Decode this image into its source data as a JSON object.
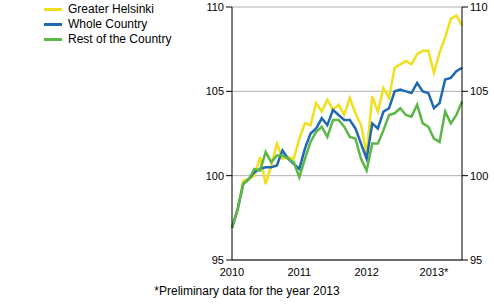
{
  "chart_data": {
    "type": "line",
    "annotations": [
      "*Preliminary data for the year 2013"
    ],
    "categories": [
      "2010",
      null,
      null,
      null,
      null,
      null,
      null,
      null,
      null,
      null,
      null,
      null,
      "2011",
      null,
      null,
      null,
      null,
      null,
      null,
      null,
      null,
      null,
      null,
      null,
      "2012",
      null,
      null,
      null,
      null,
      null,
      null,
      null,
      null,
      null,
      null,
      null,
      "2013*",
      null,
      null,
      null,
      null,
      null
    ],
    "series": [
      {
        "name": "Greater Helsinki",
        "color": "#f0df1c",
        "values": [
          96.9,
          98.0,
          99.7,
          99.8,
          100.0,
          101.1,
          99.5,
          100.6,
          101.9,
          101.0,
          101.1,
          101.0,
          102.2,
          103.1,
          103.0,
          104.3,
          103.8,
          104.5,
          103.9,
          104.2,
          103.6,
          104.6,
          103.7,
          103.0,
          101.3,
          104.7,
          103.8,
          105.2,
          104.6,
          106.4,
          106.6,
          106.8,
          106.6,
          107.2,
          107.4,
          107.4,
          106.1,
          107.3,
          108.2,
          109.3,
          109.5,
          108.9
        ]
      },
      {
        "name": "Whole Country",
        "color": "#1f69b3",
        "values": [
          96.9,
          98.0,
          99.5,
          99.8,
          100.2,
          100.4,
          100.5,
          100.5,
          100.6,
          101.5,
          101.0,
          100.7,
          100.4,
          101.6,
          102.5,
          102.8,
          103.4,
          103.0,
          103.9,
          103.6,
          103.3,
          103.3,
          102.8,
          101.9,
          101.0,
          103.1,
          102.8,
          103.8,
          104.0,
          105.0,
          105.1,
          105.0,
          104.9,
          105.5,
          105.0,
          104.9,
          104.0,
          104.3,
          105.7,
          105.8,
          106.2,
          106.4
        ]
      },
      {
        "name": "Rest of the Country",
        "color": "#5cb746",
        "values": [
          96.9,
          98.0,
          99.5,
          99.8,
          100.4,
          100.3,
          101.4,
          100.8,
          101.2,
          101.2,
          101.0,
          100.8,
          99.9,
          101.0,
          102.0,
          102.6,
          102.9,
          102.3,
          103.3,
          103.3,
          102.9,
          102.3,
          102.2,
          101.0,
          100.3,
          101.9,
          101.9,
          102.7,
          103.6,
          103.7,
          104.0,
          103.6,
          103.5,
          104.2,
          103.1,
          102.9,
          102.2,
          102.0,
          103.8,
          103.1,
          103.6,
          104.4
        ]
      }
    ],
    "ylim": [
      95,
      110
    ],
    "yticks": [
      95,
      100,
      105,
      110
    ],
    "grid": true,
    "legend": "upper left"
  }
}
